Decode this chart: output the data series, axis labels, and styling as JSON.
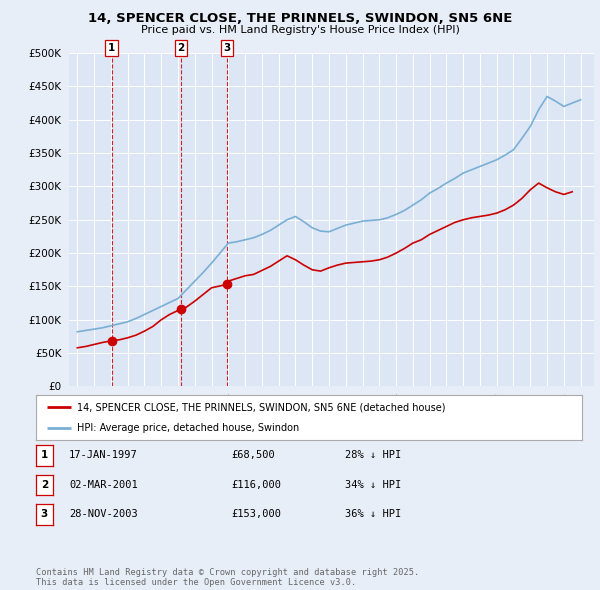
{
  "title_line1": "14, SPENCER CLOSE, THE PRINNELS, SWINDON, SN5 6NE",
  "title_line2": "Price paid vs. HM Land Registry's House Price Index (HPI)",
  "bg_color": "#e8eef8",
  "plot_bg_color": "#dce6f5",
  "grid_color": "#ffffff",
  "red_line_color": "#cc0000",
  "blue_line_color": "#7aafd4",
  "sale_marker_color": "#cc0000",
  "vline_color": "#cc0000",
  "transactions": [
    {
      "label": "1",
      "date_num": 1997.04,
      "price": 68500
    },
    {
      "label": "2",
      "date_num": 2001.17,
      "price": 116000
    },
    {
      "label": "3",
      "date_num": 2003.91,
      "price": 153000
    }
  ],
  "legend_entry1": "14, SPENCER CLOSE, THE PRINNELS, SWINDON, SN5 6NE (detached house)",
  "legend_entry2": "HPI: Average price, detached house, Swindon",
  "table_rows": [
    [
      "1",
      "17-JAN-1997",
      "£68,500",
      "28% ↓ HPI"
    ],
    [
      "2",
      "02-MAR-2001",
      "£116,000",
      "34% ↓ HPI"
    ],
    [
      "3",
      "28-NOV-2003",
      "£153,000",
      "36% ↓ HPI"
    ]
  ],
  "footer_text": "Contains HM Land Registry data © Crown copyright and database right 2025.\nThis data is licensed under the Open Government Licence v3.0.",
  "ylim": [
    0,
    500000
  ],
  "yticks": [
    0,
    50000,
    100000,
    150000,
    200000,
    250000,
    300000,
    350000,
    400000,
    450000,
    500000
  ],
  "xlim_start": 1994.5,
  "xlim_end": 2025.8,
  "hpi_years": [
    1995,
    1995.5,
    1996,
    1996.5,
    1997,
    1997.5,
    1998,
    1998.5,
    1999,
    1999.5,
    2000,
    2000.5,
    2001,
    2001.5,
    2002,
    2002.5,
    2003,
    2003.5,
    2004,
    2004.5,
    2005,
    2005.5,
    2006,
    2006.5,
    2007,
    2007.5,
    2008,
    2008.5,
    2009,
    2009.5,
    2010,
    2010.5,
    2011,
    2011.5,
    2012,
    2012.5,
    2013,
    2013.5,
    2014,
    2014.5,
    2015,
    2015.5,
    2016,
    2016.5,
    2017,
    2017.5,
    2018,
    2018.5,
    2019,
    2019.5,
    2020,
    2020.5,
    2021,
    2021.5,
    2022,
    2022.5,
    2023,
    2023.5,
    2024,
    2024.5,
    2025
  ],
  "hpi_values": [
    82000,
    84000,
    86000,
    88000,
    91000,
    94000,
    97000,
    102000,
    108000,
    114000,
    120000,
    126000,
    132000,
    145000,
    158000,
    171000,
    185000,
    200000,
    215000,
    217000,
    220000,
    223000,
    228000,
    234000,
    242000,
    250000,
    255000,
    247000,
    238000,
    233000,
    232000,
    237000,
    242000,
    245000,
    248000,
    249000,
    250000,
    253000,
    258000,
    264000,
    272000,
    280000,
    290000,
    297000,
    305000,
    312000,
    320000,
    325000,
    330000,
    335000,
    340000,
    347000,
    355000,
    372000,
    390000,
    415000,
    435000,
    428000,
    420000,
    425000,
    430000
  ],
  "red_years": [
    1995,
    1995.5,
    1996,
    1996.5,
    1997.04,
    1997.5,
    1998,
    1998.5,
    1999,
    1999.5,
    2000,
    2000.5,
    2001.17,
    2001.5,
    2002,
    2002.5,
    2003,
    2003.91,
    2004,
    2004.5,
    2005,
    2005.5,
    2006,
    2006.5,
    2007,
    2007.5,
    2008,
    2008.5,
    2009,
    2009.5,
    2010,
    2010.5,
    2011,
    2011.5,
    2012,
    2012.5,
    2013,
    2013.5,
    2014,
    2014.5,
    2015,
    2015.5,
    2016,
    2016.5,
    2017,
    2017.5,
    2018,
    2018.5,
    2019,
    2019.5,
    2020,
    2020.5,
    2021,
    2021.5,
    2022,
    2022.5,
    2023,
    2023.5,
    2024,
    2024.5
  ],
  "red_values": [
    58000,
    60000,
    63000,
    66000,
    68500,
    70000,
    73000,
    77000,
    83000,
    90000,
    100000,
    108000,
    116000,
    119000,
    128000,
    138000,
    148000,
    153000,
    158000,
    162000,
    166000,
    168000,
    174000,
    180000,
    188000,
    196000,
    190000,
    182000,
    175000,
    173000,
    178000,
    182000,
    185000,
    186000,
    187000,
    188000,
    190000,
    194000,
    200000,
    207000,
    215000,
    220000,
    228000,
    234000,
    240000,
    246000,
    250000,
    253000,
    255000,
    257000,
    260000,
    265000,
    272000,
    282000,
    295000,
    305000,
    298000,
    292000,
    288000,
    292000
  ]
}
